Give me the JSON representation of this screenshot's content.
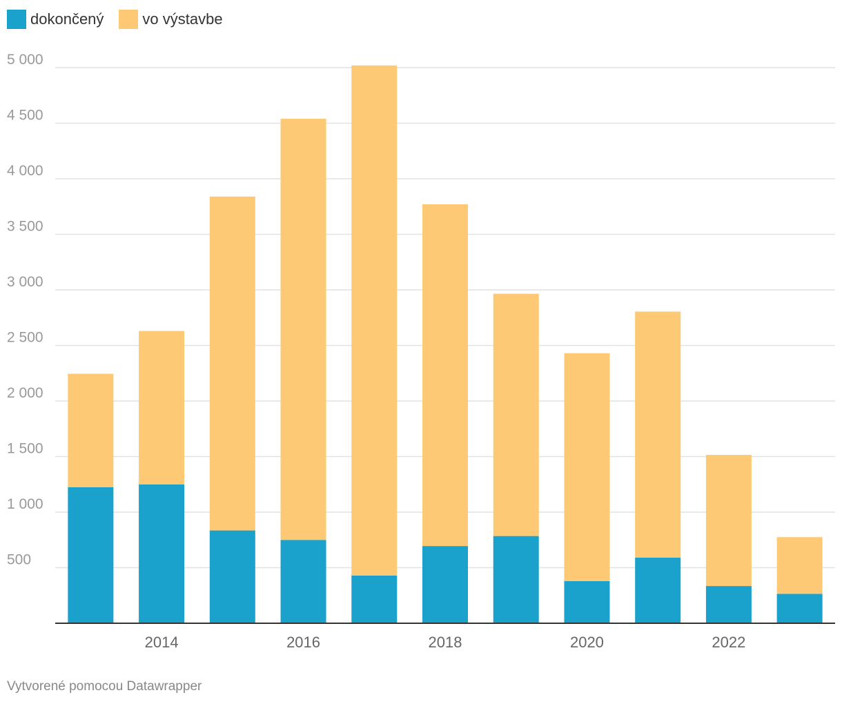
{
  "colors": {
    "completed": "#1aa1cc",
    "under_construction": "#fdc975",
    "grid": "#e2e2e2",
    "axis": "#333333",
    "tick_text": "#999999",
    "x_tick_text": "#666666"
  },
  "legend": {
    "items": [
      {
        "label": "dokončený"
      },
      {
        "label": "vo výstavbe"
      }
    ]
  },
  "footer": {
    "text": "Vytvorené pomocou Datawrapper"
  },
  "chart_data": {
    "type": "bar",
    "stacked": true,
    "categories": [
      "2013",
      "2014",
      "2015",
      "2016",
      "2017",
      "2018",
      "2019",
      "2020",
      "2021",
      "2022",
      "2023"
    ],
    "series": [
      {
        "name": "dokončený",
        "values": [
          1225,
          1250,
          835,
          750,
          430,
          695,
          785,
          380,
          590,
          335,
          265
        ]
      },
      {
        "name": "vo výstavbe",
        "values": [
          1020,
          1380,
          3005,
          3790,
          4590,
          3075,
          2180,
          2050,
          2215,
          1180,
          510
        ]
      }
    ],
    "ylim": [
      0,
      5000
    ],
    "y_ticks": [
      500,
      1000,
      1500,
      2000,
      2500,
      3000,
      3500,
      4000,
      4500,
      5000
    ],
    "y_tick_labels": [
      "500",
      "1 000",
      "1 500",
      "2 000",
      "2 500",
      "3 000",
      "3 500",
      "4 000",
      "4 500",
      "5 000"
    ],
    "x_tick_labels": [
      "2014",
      "2016",
      "2018",
      "2020",
      "2022"
    ],
    "grid": true,
    "legend_position": "top-left",
    "title": "",
    "xlabel": "",
    "ylabel": ""
  }
}
